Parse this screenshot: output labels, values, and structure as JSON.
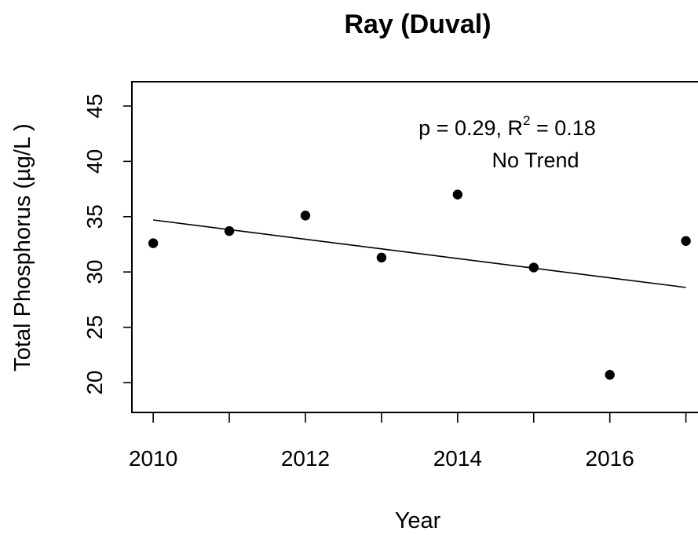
{
  "chart_data": {
    "type": "scatter",
    "title": "Ray (Duval)",
    "xlabel": "Year",
    "ylabel": "Total Phosphorus (µg/L )",
    "x_ticks": [
      2010,
      2012,
      2014,
      2016
    ],
    "x_minor_ticks": [
      2010,
      2011,
      2012,
      2013,
      2014,
      2015,
      2016,
      2017
    ],
    "y_ticks": [
      20,
      25,
      30,
      35,
      40,
      45
    ],
    "xlim": [
      2009.72,
      2017.2
    ],
    "ylim": [
      17.3,
      47.2
    ],
    "grid": false,
    "points": [
      {
        "x": 2010,
        "y": 32.6
      },
      {
        "x": 2011,
        "y": 33.7
      },
      {
        "x": 2012,
        "y": 35.1
      },
      {
        "x": 2013,
        "y": 31.3
      },
      {
        "x": 2014,
        "y": 37.0
      },
      {
        "x": 2015,
        "y": 30.4
      },
      {
        "x": 2016,
        "y": 20.7
      },
      {
        "x": 2017,
        "y": 32.8
      }
    ],
    "trendline": {
      "x": [
        2010,
        2017
      ],
      "y": [
        34.7,
        28.6
      ]
    },
    "annotation": {
      "stats_prefix": "p = 0.29, R",
      "stats_superscript": "2",
      "stats_suffix": " = 0.18",
      "trend_text": "No Trend"
    },
    "colors": {
      "points": "#000000",
      "line": "#000000",
      "axis": "#000000"
    }
  }
}
